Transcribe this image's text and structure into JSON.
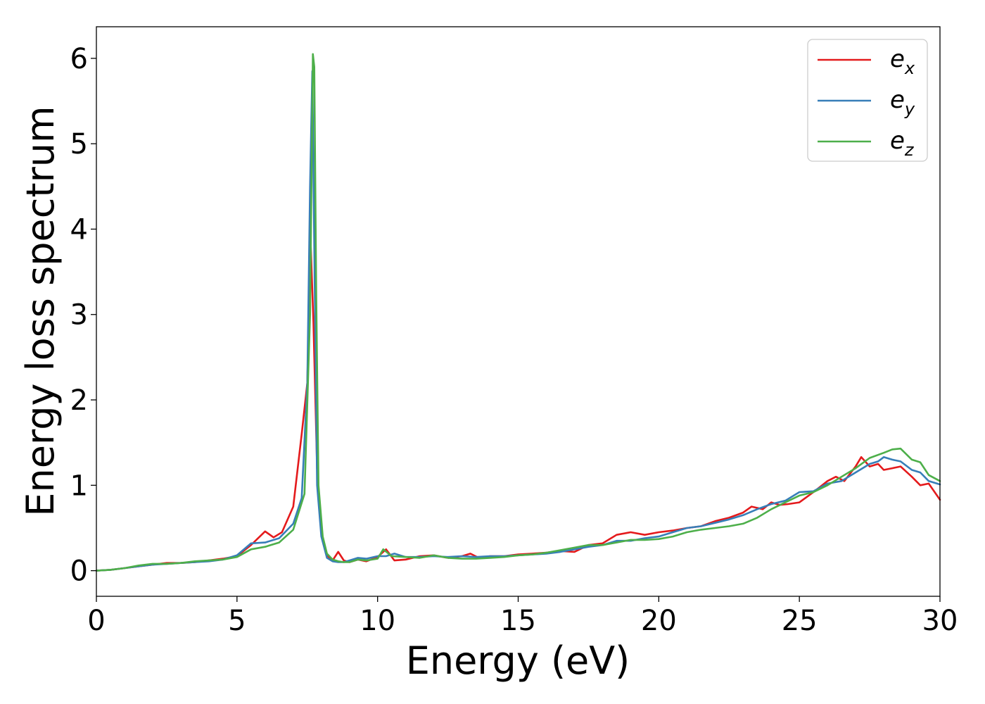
{
  "chart_data": {
    "type": "line",
    "title": "",
    "xlabel": "Energy (eV)",
    "ylabel": "Energy loss spectrum",
    "xlim": [
      0,
      30
    ],
    "ylim": [
      -0.3,
      6.37
    ],
    "xticks": [
      0,
      5,
      10,
      15,
      20,
      25,
      30
    ],
    "yticks": [
      0,
      1,
      2,
      3,
      4,
      5,
      6
    ],
    "grid": false,
    "legend_position": "top-right",
    "series": [
      {
        "name": "e_x",
        "label_base": "e",
        "label_sub": "x",
        "color": "#e41a1c",
        "x": [
          0,
          0.5,
          1,
          1.5,
          2,
          2.5,
          3,
          3.5,
          4,
          4.5,
          5,
          5.5,
          6,
          6.3,
          6.6,
          7.0,
          7.3,
          7.5,
          7.62,
          7.72,
          7.85,
          8.0,
          8.2,
          8.4,
          8.6,
          8.8,
          9.0,
          9.3,
          9.6,
          10.0,
          10.3,
          10.6,
          11.0,
          11.5,
          12.0,
          12.5,
          13.0,
          13.3,
          13.6,
          14.0,
          14.5,
          15.0,
          15.5,
          16.0,
          16.5,
          17.0,
          17.5,
          18.0,
          18.5,
          19.0,
          19.5,
          20.0,
          20.5,
          21.0,
          21.5,
          22.0,
          22.5,
          23.0,
          23.3,
          23.7,
          24.0,
          24.3,
          24.6,
          25.0,
          25.5,
          26.0,
          26.3,
          26.6,
          27.0,
          27.2,
          27.5,
          27.8,
          28.0,
          28.3,
          28.6,
          29.0,
          29.3,
          29.6,
          30.0
        ],
        "y": [
          0.0,
          0.01,
          0.03,
          0.05,
          0.07,
          0.09,
          0.09,
          0.1,
          0.12,
          0.14,
          0.17,
          0.3,
          0.46,
          0.39,
          0.45,
          0.75,
          1.6,
          2.2,
          3.85,
          2.9,
          1.2,
          0.45,
          0.18,
          0.12,
          0.22,
          0.12,
          0.1,
          0.13,
          0.11,
          0.16,
          0.25,
          0.12,
          0.13,
          0.17,
          0.18,
          0.15,
          0.17,
          0.2,
          0.15,
          0.17,
          0.17,
          0.19,
          0.2,
          0.21,
          0.23,
          0.22,
          0.3,
          0.32,
          0.42,
          0.45,
          0.42,
          0.45,
          0.47,
          0.5,
          0.52,
          0.58,
          0.62,
          0.68,
          0.75,
          0.72,
          0.8,
          0.77,
          0.78,
          0.8,
          0.92,
          1.05,
          1.1,
          1.05,
          1.22,
          1.33,
          1.22,
          1.25,
          1.18,
          1.2,
          1.22,
          1.1,
          1.0,
          1.02,
          0.83
        ]
      },
      {
        "name": "e_y",
        "label_base": "e",
        "label_sub": "y",
        "color": "#377eb8",
        "x": [
          0,
          0.5,
          1,
          1.5,
          2,
          2.5,
          3,
          3.5,
          4,
          4.5,
          5,
          5.5,
          6,
          6.5,
          7.0,
          7.3,
          7.5,
          7.6,
          7.68,
          7.76,
          7.85,
          8.0,
          8.2,
          8.4,
          8.6,
          8.8,
          9.0,
          9.3,
          9.6,
          10.0,
          10.3,
          10.6,
          11.0,
          11.5,
          12.0,
          12.5,
          13.0,
          13.5,
          14.0,
          14.5,
          15.0,
          15.5,
          16.0,
          16.5,
          17.0,
          17.5,
          18.0,
          18.5,
          19.0,
          19.5,
          20.0,
          20.5,
          21.0,
          21.5,
          22.0,
          22.5,
          23.0,
          23.5,
          24.0,
          24.5,
          25.0,
          25.5,
          26.0,
          26.5,
          27.0,
          27.5,
          27.8,
          28.0,
          28.3,
          28.6,
          29.0,
          29.3,
          29.6,
          30.0
        ],
        "y": [
          0.0,
          0.01,
          0.03,
          0.05,
          0.07,
          0.08,
          0.09,
          0.1,
          0.11,
          0.13,
          0.18,
          0.32,
          0.33,
          0.38,
          0.55,
          0.85,
          2.2,
          4.5,
          5.85,
          3.5,
          1.0,
          0.4,
          0.15,
          0.11,
          0.1,
          0.1,
          0.12,
          0.15,
          0.14,
          0.17,
          0.17,
          0.2,
          0.16,
          0.16,
          0.17,
          0.16,
          0.17,
          0.16,
          0.17,
          0.17,
          0.18,
          0.19,
          0.2,
          0.22,
          0.25,
          0.28,
          0.3,
          0.35,
          0.35,
          0.38,
          0.4,
          0.45,
          0.5,
          0.52,
          0.56,
          0.6,
          0.65,
          0.72,
          0.78,
          0.82,
          0.92,
          0.93,
          1.02,
          1.05,
          1.15,
          1.25,
          1.28,
          1.33,
          1.3,
          1.28,
          1.18,
          1.15,
          1.05,
          1.01
        ]
      },
      {
        "name": "e_z",
        "label_base": "e",
        "label_sub": "z",
        "color": "#4daf4a",
        "x": [
          0,
          0.5,
          1,
          1.5,
          2,
          2.5,
          3,
          3.5,
          4,
          4.5,
          5,
          5.5,
          6,
          6.5,
          7.0,
          7.4,
          7.6,
          7.7,
          7.75,
          7.82,
          7.9,
          8.05,
          8.2,
          8.4,
          8.6,
          8.8,
          9.0,
          9.3,
          9.6,
          10.0,
          10.2,
          10.5,
          11.0,
          11.5,
          12.0,
          12.5,
          13.0,
          13.5,
          14.0,
          14.5,
          15.0,
          15.5,
          16.0,
          16.5,
          17.0,
          17.5,
          18.0,
          18.5,
          19.0,
          19.5,
          20.0,
          20.5,
          21.0,
          21.5,
          22.0,
          22.5,
          23.0,
          23.5,
          24.0,
          24.5,
          25.0,
          25.5,
          26.0,
          26.5,
          27.0,
          27.5,
          28.0,
          28.3,
          28.6,
          29.0,
          29.3,
          29.6,
          30.0
        ],
        "y": [
          0.0,
          0.01,
          0.03,
          0.06,
          0.08,
          0.08,
          0.09,
          0.11,
          0.12,
          0.13,
          0.16,
          0.25,
          0.28,
          0.33,
          0.48,
          0.9,
          3.0,
          6.05,
          5.9,
          3.2,
          1.0,
          0.4,
          0.2,
          0.13,
          0.11,
          0.1,
          0.1,
          0.13,
          0.12,
          0.14,
          0.25,
          0.17,
          0.16,
          0.15,
          0.18,
          0.15,
          0.14,
          0.14,
          0.15,
          0.16,
          0.18,
          0.19,
          0.21,
          0.24,
          0.27,
          0.3,
          0.3,
          0.33,
          0.36,
          0.36,
          0.37,
          0.4,
          0.45,
          0.48,
          0.5,
          0.52,
          0.55,
          0.62,
          0.72,
          0.8,
          0.88,
          0.92,
          1.0,
          1.1,
          1.2,
          1.32,
          1.38,
          1.42,
          1.43,
          1.3,
          1.27,
          1.12,
          1.05
        ]
      }
    ]
  }
}
